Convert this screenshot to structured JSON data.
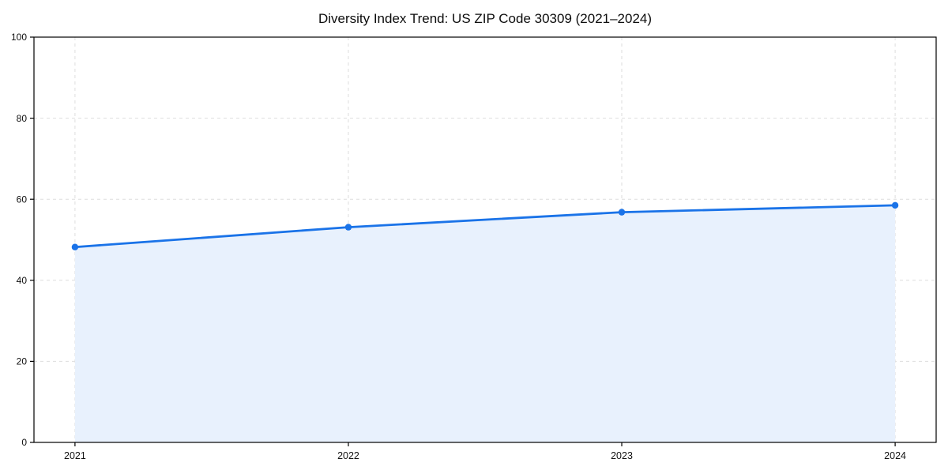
{
  "chart_data": {
    "type": "area",
    "title": "Diversity Index Trend: US ZIP Code 30309 (2021–2024)",
    "x": [
      2021,
      2022,
      2023,
      2024
    ],
    "xticks": [
      2021,
      2022,
      2023,
      2024
    ],
    "xtick_labels": [
      "2021",
      "2022",
      "2023",
      "2024"
    ],
    "series": [
      {
        "name": "Diversity Index",
        "values": [
          48.2,
          53.1,
          56.8,
          58.5
        ]
      }
    ],
    "xlabel": "",
    "ylabel": "",
    "ylim": [
      0,
      100
    ],
    "yticks": [
      0,
      20,
      40,
      60,
      80,
      100
    ],
    "grid": "dashed",
    "legend": false,
    "line_color": "#1a73e8",
    "marker_color": "#1a73e8",
    "fill_color": "#e8f1fd",
    "grid_color": "#dddddd",
    "axis_color": "#000000",
    "text_color": "#111111"
  }
}
